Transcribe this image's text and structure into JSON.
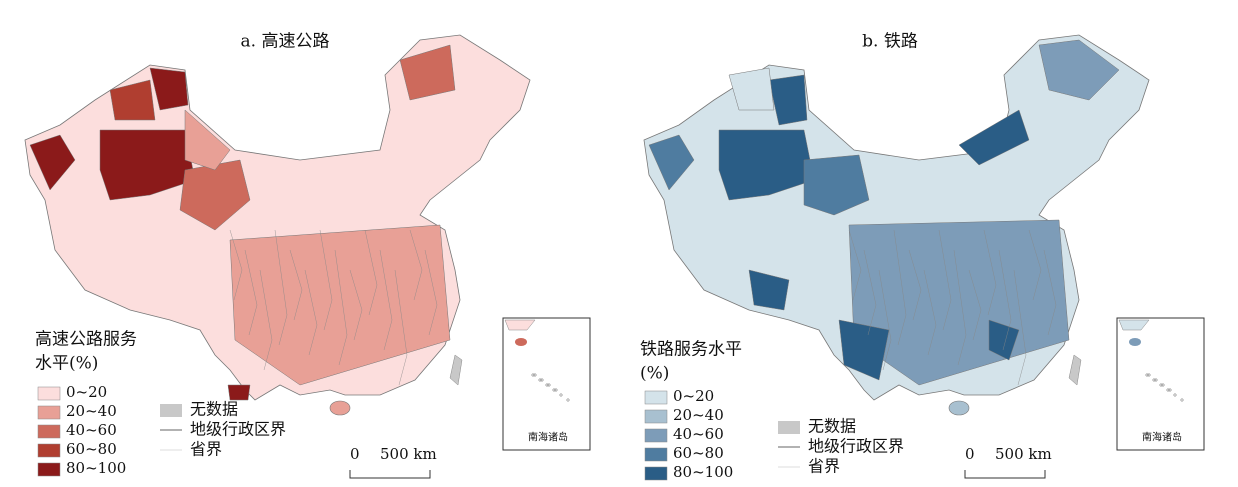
{
  "panels": [
    {
      "title": "a. 高速公路",
      "legend": {
        "title_lines": [
          "高速公路服务",
          "水平(%)"
        ],
        "items": [
          {
            "label": "0~20",
            "color": "#fcdedd"
          },
          {
            "label": "20~40",
            "color": "#e8a096"
          },
          {
            "label": "40~60",
            "color": "#cd6a5c"
          },
          {
            "label": "60~80",
            "color": "#b03e30"
          },
          {
            "label": "80~100",
            "color": "#8b1a1a"
          }
        ]
      },
      "no_data": "无数据",
      "prefecture_boundary": "地级行政区界",
      "province_boundary": "省界",
      "scale": {
        "zero": "0",
        "distance": "500 km"
      },
      "inset_label": "南海诸岛"
    },
    {
      "title": "b. 铁路",
      "legend": {
        "title_lines": [
          "铁路服务水平",
          "(%)"
        ],
        "items": [
          {
            "label": "0~20",
            "color": "#d4e3ea"
          },
          {
            "label": "20~40",
            "color": "#a8c0d0"
          },
          {
            "label": "40~60",
            "color": "#7d9cb8"
          },
          {
            "label": "60~80",
            "color": "#4f7ca0"
          },
          {
            "label": "80~100",
            "color": "#2a5d86"
          }
        ]
      },
      "no_data": "无数据",
      "prefecture_boundary": "地级行政区界",
      "province_boundary": "省界",
      "scale": {
        "zero": "0",
        "distance": "500 km"
      },
      "inset_label": "南海诸岛"
    }
  ]
}
